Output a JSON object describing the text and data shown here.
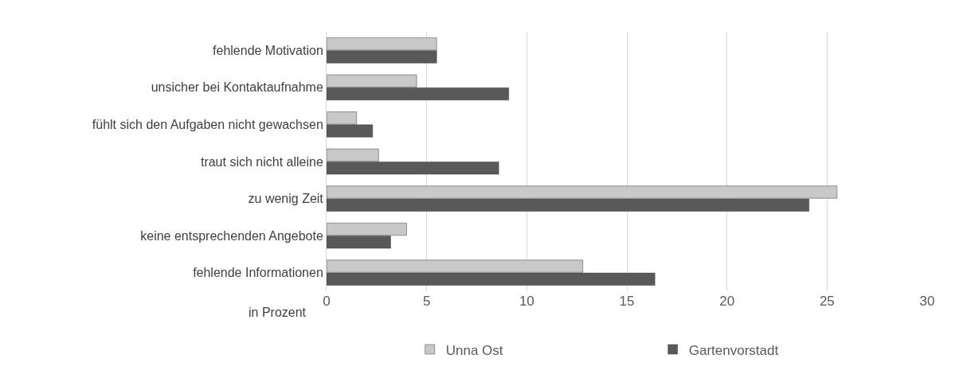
{
  "chart_data": {
    "type": "bar",
    "orientation": "horizontal",
    "xlabel": "in Prozent",
    "categories": [
      "fehlende Motivation",
      "unsicher bei Kontaktaufnahme",
      "fühlt sich den Aufgaben nicht gewachsen",
      "traut sich nicht alleine",
      "zu wenig Zeit",
      "keine entsprechenden Angebote",
      "fehlende Informationen"
    ],
    "series": [
      {
        "name": "Unna Ost",
        "color": "#c8c8c8",
        "values": [
          5.5,
          4.5,
          1.5,
          2.6,
          25.5,
          4.0,
          12.8
        ]
      },
      {
        "name": "Gartenvorstadt",
        "color": "#595959",
        "values": [
          5.5,
          9.1,
          2.3,
          8.6,
          24.1,
          3.2,
          16.4
        ]
      }
    ],
    "xlim": [
      0,
      30
    ],
    "xticks": [
      0,
      5,
      10,
      15,
      20,
      25,
      30
    ],
    "grid": "x",
    "legend": "bottom"
  }
}
